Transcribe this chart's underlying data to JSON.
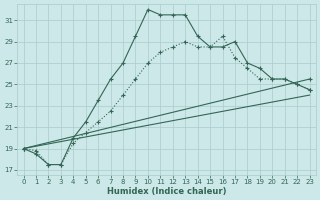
{
  "xlabel": "Humidex (Indice chaleur)",
  "bg_color": "#cce8e8",
  "grid_color": "#aacccc",
  "line_color": "#336655",
  "xlim": [
    -0.5,
    23.5
  ],
  "ylim": [
    16.5,
    32.5
  ],
  "xticks": [
    0,
    1,
    2,
    3,
    4,
    5,
    6,
    7,
    8,
    9,
    10,
    11,
    12,
    13,
    14,
    15,
    16,
    17,
    18,
    19,
    20,
    21,
    22,
    23
  ],
  "yticks": [
    17,
    19,
    21,
    23,
    25,
    27,
    29,
    31
  ],
  "line1_x": [
    0,
    1,
    2,
    3,
    4,
    5,
    6,
    7,
    8,
    9,
    10,
    11,
    12,
    13,
    14,
    15,
    16,
    17,
    18,
    19,
    20,
    21,
    22,
    23
  ],
  "line1_y": [
    19,
    18.5,
    17.5,
    17.5,
    20,
    21.5,
    23.5,
    25.5,
    27,
    29.5,
    32,
    31.5,
    31.5,
    31.5,
    29.5,
    28.5,
    28.5,
    29,
    27,
    26.5,
    25.5,
    25.5,
    25,
    24.5
  ],
  "line2_x": [
    0,
    1,
    2,
    3,
    4,
    5,
    6,
    7,
    8,
    9,
    10,
    11,
    12,
    13,
    14,
    15,
    16,
    17,
    18,
    19,
    20,
    21,
    22,
    23
  ],
  "line2_y": [
    19,
    18.8,
    17.5,
    17.5,
    19.5,
    20.5,
    21.5,
    22.5,
    24,
    25.5,
    27,
    28,
    28.5,
    29,
    28.5,
    28.5,
    29.5,
    27.5,
    26.5,
    25.5,
    25.5,
    25.5,
    25,
    24.5
  ],
  "line3_x": [
    0,
    23
  ],
  "line3_y": [
    19,
    25.5
  ],
  "line4_x": [
    0,
    23
  ],
  "line4_y": [
    19,
    24
  ]
}
